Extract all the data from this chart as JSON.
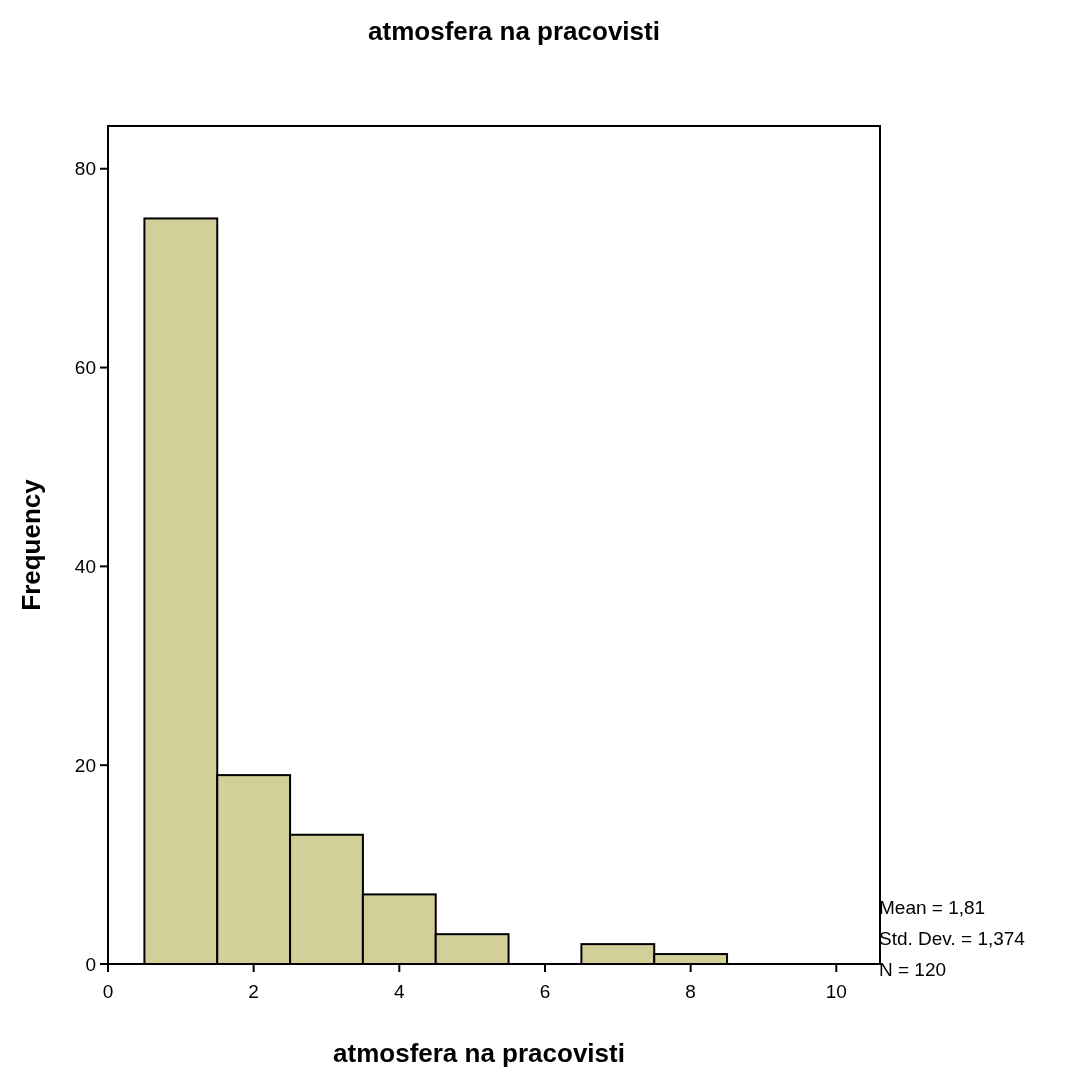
{
  "chart_data": {
    "type": "histogram",
    "title": "atmosfera na pracovisti",
    "xlabel": "atmosfera na pracovisti",
    "ylabel": "Frequency",
    "bins": [
      0.5,
      1.5,
      2.5,
      3.5,
      4.5,
      5.5,
      6.5,
      7.5,
      8.5
    ],
    "values": [
      75,
      19,
      13,
      7,
      3,
      0,
      2,
      1
    ],
    "color": "#d3cf98",
    "xlim": [
      0,
      10.6
    ],
    "xticks": [
      0,
      2,
      4,
      6,
      8,
      10
    ],
    "ylim": [
      0,
      84.3
    ],
    "yticks": [
      0,
      20,
      40,
      60,
      80
    ],
    "grid": false,
    "annotations": [
      "Mean = 1,81",
      "Std. Dev. = 1,374",
      "N = 120"
    ]
  }
}
